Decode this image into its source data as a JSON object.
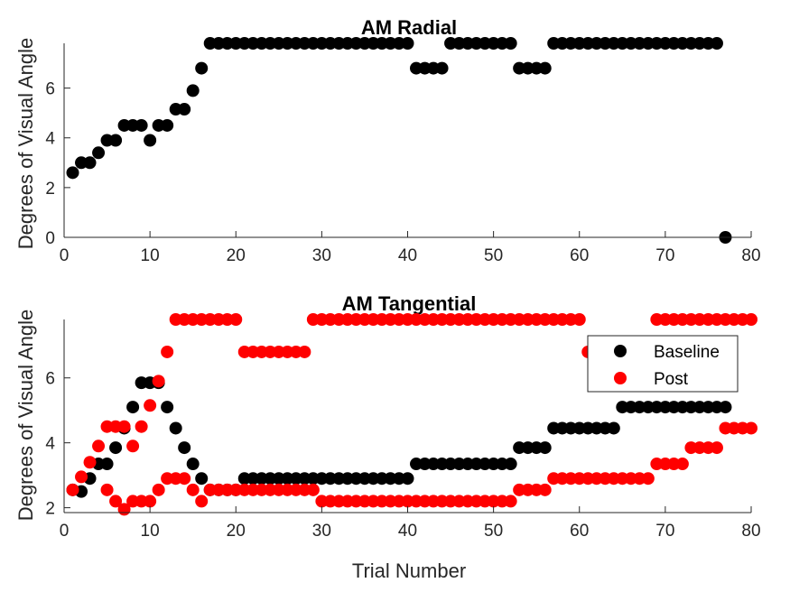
{
  "chart_data": [
    {
      "type": "scatter",
      "title": "AM Radial",
      "xlabel": "",
      "ylabel": "Degrees of Visual Angle",
      "xlim": [
        0,
        80
      ],
      "ylim": [
        0,
        7.8
      ],
      "xticks": [
        "0",
        "10",
        "20",
        "30",
        "40",
        "50",
        "60",
        "70",
        "80"
      ],
      "yticks": [
        "0",
        "2",
        "4",
        "6"
      ],
      "grid": false,
      "series": [
        {
          "name": "",
          "color": "#000000",
          "x": [
            1,
            2,
            3,
            4,
            5,
            6,
            7,
            8,
            9,
            10,
            11,
            12,
            13,
            14,
            15,
            16,
            17,
            18,
            19,
            20,
            21,
            22,
            23,
            24,
            25,
            26,
            27,
            28,
            29,
            30,
            31,
            32,
            33,
            34,
            35,
            36,
            37,
            38,
            39,
            40,
            41,
            42,
            43,
            44,
            45,
            46,
            47,
            48,
            49,
            50,
            51,
            52,
            53,
            54,
            55,
            56,
            57,
            58,
            59,
            60,
            61,
            62,
            63,
            64,
            65,
            66,
            67,
            68,
            69,
            70,
            71,
            72,
            73,
            74,
            75,
            76,
            77
          ],
          "y": [
            2.6,
            3.0,
            3.0,
            3.4,
            3.9,
            3.9,
            4.5,
            4.5,
            4.5,
            3.9,
            4.5,
            4.5,
            5.15,
            5.15,
            5.9,
            6.8,
            7.8,
            7.8,
            7.8,
            7.8,
            7.8,
            7.8,
            7.8,
            7.8,
            7.8,
            7.8,
            7.8,
            7.8,
            7.8,
            7.8,
            7.8,
            7.8,
            7.8,
            7.8,
            7.8,
            7.8,
            7.8,
            7.8,
            7.8,
            7.8,
            6.8,
            6.8,
            6.8,
            6.8,
            7.8,
            7.8,
            7.8,
            7.8,
            7.8,
            7.8,
            7.8,
            7.8,
            6.8,
            6.8,
            6.8,
            6.8,
            7.8,
            7.8,
            7.8,
            7.8,
            7.8,
            7.8,
            7.8,
            7.8,
            7.8,
            7.8,
            7.8,
            7.8,
            7.8,
            7.8,
            7.8,
            7.8,
            7.8,
            7.8,
            7.8,
            7.8,
            0
          ]
        }
      ]
    },
    {
      "type": "scatter",
      "title": "AM Tangential",
      "xlabel": "Trial Number",
      "ylabel": "Degrees of Visual Angle",
      "xlim": [
        0,
        80
      ],
      "ylim": [
        1.8,
        7.8
      ],
      "xticks": [
        "0",
        "10",
        "20",
        "30",
        "40",
        "50",
        "60",
        "70",
        "80"
      ],
      "yticks": [
        "2",
        "4",
        "6"
      ],
      "grid": false,
      "legend": "upper-right",
      "series": [
        {
          "name": "Baseline",
          "color": "#000000",
          "x": [
            1,
            2,
            3,
            4,
            5,
            6,
            7,
            8,
            9,
            10,
            11,
            12,
            13,
            14,
            15,
            16,
            17,
            18,
            19,
            20,
            21,
            22,
            23,
            24,
            25,
            26,
            27,
            28,
            29,
            30,
            31,
            32,
            33,
            34,
            35,
            36,
            37,
            38,
            39,
            40,
            41,
            42,
            43,
            44,
            45,
            46,
            47,
            48,
            49,
            50,
            51,
            52,
            53,
            54,
            55,
            56,
            57,
            58,
            59,
            60,
            61,
            62,
            63,
            64,
            65,
            66,
            67,
            68,
            69,
            70,
            71,
            72,
            73,
            74,
            75,
            76,
            77
          ],
          "y": [
            2.55,
            2.5,
            2.9,
            3.35,
            3.35,
            3.85,
            4.45,
            5.1,
            5.85,
            5.85,
            5.85,
            5.1,
            4.45,
            3.85,
            3.35,
            2.9,
            2.55,
            2.55,
            2.55,
            2.55,
            2.9,
            2.9,
            2.9,
            2.9,
            2.9,
            2.9,
            2.9,
            2.9,
            2.9,
            2.9,
            2.9,
            2.9,
            2.9,
            2.9,
            2.9,
            2.9,
            2.9,
            2.9,
            2.9,
            2.9,
            3.35,
            3.35,
            3.35,
            3.35,
            3.35,
            3.35,
            3.35,
            3.35,
            3.35,
            3.35,
            3.35,
            3.35,
            3.85,
            3.85,
            3.85,
            3.85,
            4.45,
            4.45,
            4.45,
            4.45,
            4.45,
            4.45,
            4.45,
            4.45,
            5.1,
            5.1,
            5.1,
            5.1,
            5.1,
            5.1,
            5.1,
            5.1,
            5.1,
            5.1,
            5.1,
            5.1,
            5.1
          ]
        },
        {
          "name": "Post",
          "color": "#ff0000",
          "x": [
            1,
            2,
            3,
            4,
            5,
            6,
            7,
            8,
            9,
            10,
            11,
            12,
            13,
            14,
            15,
            16,
            17,
            18,
            19,
            20,
            21,
            22,
            23,
            24,
            25,
            26,
            27,
            28,
            29,
            30,
            31,
            32,
            33,
            34,
            35,
            36,
            37,
            38,
            39,
            40,
            41,
            42,
            43,
            44,
            45,
            46,
            47,
            48,
            49,
            50,
            51,
            52,
            53,
            54,
            55,
            56,
            57,
            58,
            59,
            60,
            61,
            62,
            63,
            64,
            65,
            66,
            67,
            68,
            69,
            70,
            71,
            72,
            73,
            74,
            75,
            76,
            77,
            78,
            79,
            80
          ],
          "y": [
            2.55,
            2.95,
            3.4,
            3.9,
            4.5,
            4.5,
            4.5,
            3.9,
            4.5,
            5.15,
            5.9,
            6.8,
            7.8,
            7.8,
            7.8,
            7.8,
            7.8,
            7.8,
            7.8,
            7.8,
            6.8,
            6.8,
            6.8,
            6.8,
            6.8,
            6.8,
            6.8,
            6.8,
            7.8,
            7.8,
            7.8,
            7.8,
            7.8,
            7.8,
            7.8,
            7.8,
            7.8,
            7.8,
            7.8,
            7.8,
            7.8,
            7.8,
            7.8,
            7.8,
            7.8,
            7.8,
            7.8,
            7.8,
            7.8,
            7.8,
            7.8,
            7.8,
            7.8,
            7.8,
            7.8,
            7.8,
            7.8,
            7.8,
            7.8,
            7.8,
            6.8,
            6.8,
            6.8,
            6.8,
            6.8,
            6.8,
            6.8,
            6.8,
            7.8,
            7.8,
            7.8,
            7.8,
            7.8,
            7.8,
            7.8,
            7.8,
            7.8,
            7.8,
            7.8,
            7.8
          ]
        },
        {
          "name": "",
          "color": "#ff0000",
          "x": [
            5,
            6,
            7,
            8,
            9,
            10,
            11,
            12,
            13,
            14,
            15,
            16,
            17,
            18,
            19,
            20,
            21,
            22,
            23,
            24,
            25,
            26,
            27,
            28,
            29,
            30,
            31,
            32,
            33,
            34,
            35,
            36,
            37,
            38,
            39,
            40,
            41,
            42,
            43,
            44,
            45,
            46,
            47,
            48,
            49,
            50,
            51,
            52,
            53,
            54,
            55,
            56,
            57,
            58,
            59,
            60,
            61,
            62,
            63,
            64,
            65,
            66,
            67,
            68,
            69,
            70,
            71,
            72,
            73,
            74,
            75,
            76,
            77,
            78,
            79,
            80
          ],
          "y": [
            2.55,
            2.2,
            1.95,
            2.2,
            2.2,
            2.2,
            2.55,
            2.9,
            2.9,
            2.9,
            2.55,
            2.2,
            2.55,
            2.55,
            2.55,
            2.55,
            2.55,
            2.55,
            2.55,
            2.55,
            2.55,
            2.55,
            2.55,
            2.55,
            2.55,
            2.2,
            2.2,
            2.2,
            2.2,
            2.2,
            2.2,
            2.2,
            2.2,
            2.2,
            2.2,
            2.2,
            2.2,
            2.2,
            2.2,
            2.2,
            2.2,
            2.2,
            2.2,
            2.2,
            2.2,
            2.2,
            2.2,
            2.2,
            2.55,
            2.55,
            2.55,
            2.55,
            2.9,
            2.9,
            2.9,
            2.9,
            2.9,
            2.9,
            2.9,
            2.9,
            2.9,
            2.9,
            2.9,
            2.9,
            3.35,
            3.35,
            3.35,
            3.35,
            3.85,
            3.85,
            3.85,
            3.85,
            4.45,
            4.45,
            4.45,
            4.45
          ]
        }
      ]
    }
  ]
}
